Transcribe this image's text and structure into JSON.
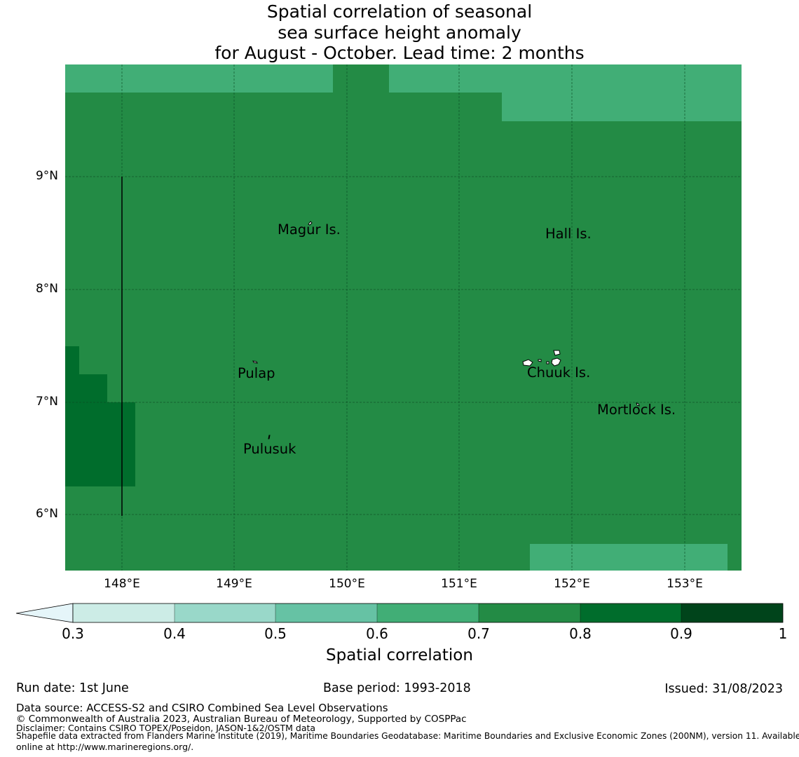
{
  "title": {
    "line1": "Spatial correlation of seasonal",
    "line2": "sea surface height anomaly",
    "line3": "for August - October. Lead time: 2 months"
  },
  "map": {
    "lat_labels": [
      "9°N",
      "8°N",
      "7°N",
      "6°N"
    ],
    "lon_labels": [
      "148°E",
      "149°E",
      "150°E",
      "151°E",
      "152°E",
      "153°E"
    ],
    "places": [
      "Magur Is.",
      "Hall Is.",
      "Pulap",
      "Chuuk Is.",
      "Mortlock Is.",
      "Pulusuk"
    ],
    "colors": {
      "c06_07": "#41ae76",
      "c07_08": "#238b45",
      "c08_09": "#006d2c",
      "c09_10": "#00441b"
    }
  },
  "colorbar": {
    "ticks": [
      "0.3",
      "0.4",
      "0.5",
      "0.6",
      "0.7",
      "0.8",
      "0.9",
      "1"
    ],
    "colors": [
      "#e5f5f9",
      "#ccece6",
      "#99d8c9",
      "#66c2a4",
      "#41ae76",
      "#238b45",
      "#006d2c",
      "#00441b"
    ],
    "label": "Spatial correlation"
  },
  "footer": {
    "run_date": "Run date: 1st June",
    "base_period": "Base period: 1993-2018",
    "issued": "Issued: 31/08/2023",
    "data_source": "Data source: ACCESS-S2 and CSIRO Combined Sea Level Observations",
    "copyright": "© Commonwealth of Australia 2023, Australian Bureau of Meteorology, Supported by COSPPac",
    "disclaimer": "Disclaimer: Contains CSIRO TOPEX/Poseidon, JASON-1&2/OSTM data",
    "shapefile1": "Shapefile data extracted from Flanders Marine Institute (2019), Maritime Boundaries Geodatabase: Maritime Boundaries and Exclusive Economic Zones (200NM), version 11. Available",
    "shapefile2": "online at http://www.marineregions.org/."
  }
}
